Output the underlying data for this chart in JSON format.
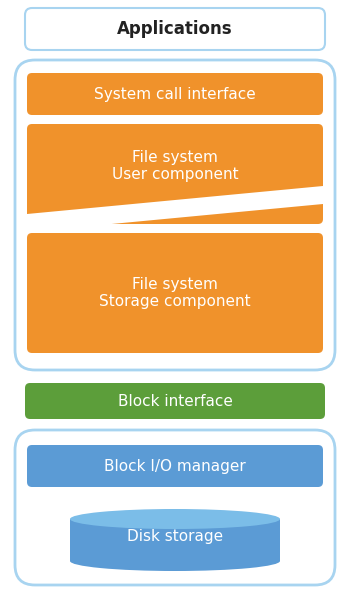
{
  "fig_width": 3.5,
  "fig_height": 5.94,
  "bg_color": "#ffffff",
  "orange_color": "#F0922B",
  "green_color": "#5C9E3A",
  "blue_color": "#5B9BD5",
  "white_bg": "#ffffff",
  "box_border_color": "#A8D4F0",
  "app_border_color": "#A8D4F0",
  "white": "#ffffff",
  "black": "#222222",
  "disk_top_color": "#7BBDE8",
  "applications_label": "Applications",
  "system_call_label": "System call interface",
  "fs_user_label": "File system\nUser component",
  "fs_storage_label": "File system\nStorage component",
  "block_interface_label": "Block interface",
  "block_io_label": "Block I/O manager",
  "disk_storage_label": "Disk storage"
}
